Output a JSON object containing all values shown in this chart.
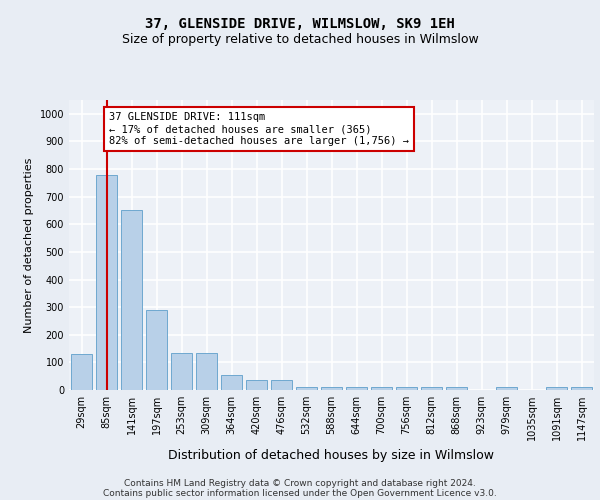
{
  "title": "37, GLENSIDE DRIVE, WILMSLOW, SK9 1EH",
  "subtitle": "Size of property relative to detached houses in Wilmslow",
  "xlabel": "Distribution of detached houses by size in Wilmslow",
  "ylabel": "Number of detached properties",
  "bar_color": "#b8d0e8",
  "bar_edge_color": "#6ea8d0",
  "bar_categories": [
    "29sqm",
    "85sqm",
    "141sqm",
    "197sqm",
    "253sqm",
    "309sqm",
    "364sqm",
    "420sqm",
    "476sqm",
    "532sqm",
    "588sqm",
    "644sqm",
    "700sqm",
    "756sqm",
    "812sqm",
    "868sqm",
    "923sqm",
    "979sqm",
    "1035sqm",
    "1091sqm",
    "1147sqm"
  ],
  "bar_values": [
    130,
    780,
    650,
    290,
    135,
    135,
    55,
    35,
    35,
    12,
    12,
    12,
    12,
    12,
    12,
    12,
    0,
    12,
    0,
    12,
    12
  ],
  "ylim": [
    0,
    1050
  ],
  "yticks": [
    0,
    100,
    200,
    300,
    400,
    500,
    600,
    700,
    800,
    900,
    1000
  ],
  "vline_x": 1,
  "vline_color": "#cc0000",
  "annotation_text": "37 GLENSIDE DRIVE: 111sqm\n← 17% of detached houses are smaller (365)\n82% of semi-detached houses are larger (1,756) →",
  "annotation_box_facecolor": "#ffffff",
  "annotation_box_edgecolor": "#cc0000",
  "footer_line1": "Contains HM Land Registry data © Crown copyright and database right 2024.",
  "footer_line2": "Contains public sector information licensed under the Open Government Licence v3.0.",
  "fig_bg_color": "#e8edf4",
  "plot_bg_color": "#edf1f7",
  "grid_color": "#ffffff",
  "title_fontsize": 10,
  "subtitle_fontsize": 9,
  "xlabel_fontsize": 9,
  "ylabel_fontsize": 8,
  "tick_fontsize": 7,
  "annotation_fontsize": 7.5,
  "footer_fontsize": 6.5
}
